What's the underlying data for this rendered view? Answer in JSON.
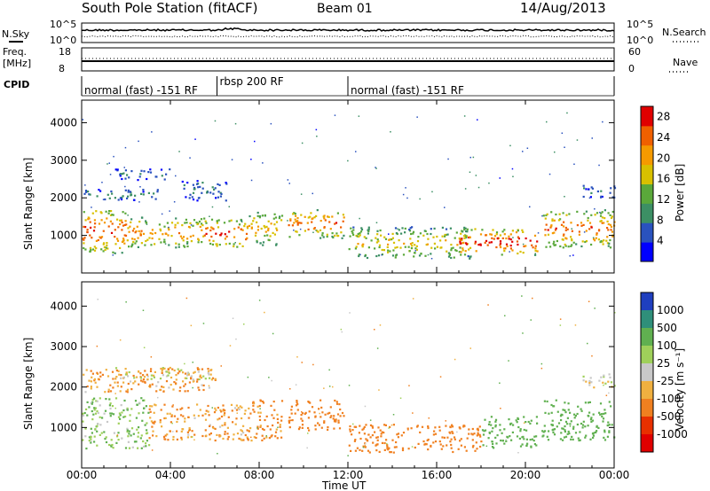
{
  "header": {
    "station": "South Pole Station (fitACF)",
    "beam": "Beam 01",
    "date": "14/Aug/2013"
  },
  "left_labels": {
    "nsky": "N.Sky",
    "freq_line1": "Freq.",
    "freq_line2": "[MHz]",
    "cpid": "CPID"
  },
  "right_labels": {
    "nsearch": "N.Search",
    "nave": "Nave"
  },
  "noise_axis": {
    "left_top": "10^5",
    "left_bottom": "10^0",
    "right_top": "10^5",
    "right_bottom": "10^0"
  },
  "freq_axis": {
    "left_top": "18",
    "left_bottom": "8",
    "right_top": "60",
    "right_bottom": "0"
  },
  "cpid_segments": [
    {
      "label": "normal (fast) -151 RF",
      "start_hour": 0,
      "end_hour": 6.1
    },
    {
      "label": "rbsp 200 RF",
      "start_hour": 6.1,
      "end_hour": 12.0
    },
    {
      "label": "normal (fast) -151 RF",
      "start_hour": 12.0,
      "end_hour": 24
    }
  ],
  "chart_data": [
    {
      "type": "heatmap",
      "name": "power",
      "ylabel": "Slant Range [km]",
      "xlabel": "",
      "ylim": [
        0,
        4600
      ],
      "yticks": [
        1000,
        2000,
        3000,
        4000
      ],
      "colorbar": {
        "label": "Power [dB]",
        "range": [
          0,
          30
        ],
        "ticks": [
          "4",
          "8",
          "12",
          "16",
          "20",
          "24",
          "28"
        ],
        "tick_values": [
          4,
          8,
          12,
          16,
          20,
          24,
          28
        ],
        "colors": [
          "#0000ff",
          "#2a52be",
          "#3c8f64",
          "#5aa83a",
          "#d8c000",
          "#f59a00",
          "#f06000",
          "#e00000"
        ]
      },
      "bands": [
        {
          "t0": 0.0,
          "t1": 2.0,
          "r0": 550,
          "r1": 1750,
          "peak": 26
        },
        {
          "t0": 0.0,
          "t1": 3.5,
          "r0": 1950,
          "r1": 2250,
          "peak": 9
        },
        {
          "t0": 1.5,
          "t1": 4.0,
          "r0": 2500,
          "r1": 2800,
          "peak": 7
        },
        {
          "t0": 2.0,
          "t1": 5.5,
          "r0": 700,
          "r1": 1500,
          "peak": 22
        },
        {
          "t0": 4.5,
          "t1": 6.5,
          "r0": 1950,
          "r1": 2500,
          "peak": 8
        },
        {
          "t0": 5.5,
          "t1": 7.5,
          "r0": 700,
          "r1": 1450,
          "peak": 26
        },
        {
          "t0": 7.5,
          "t1": 9.0,
          "r0": 750,
          "r1": 1650,
          "peak": 20
        },
        {
          "t0": 9.3,
          "t1": 11.8,
          "r0": 950,
          "r1": 1700,
          "peak": 24
        },
        {
          "t0": 12.0,
          "t1": 17.5,
          "r0": 400,
          "r1": 1250,
          "peak": 18
        },
        {
          "t0": 17.0,
          "t1": 20.5,
          "r0": 500,
          "r1": 1200,
          "peak": 28
        },
        {
          "t0": 20.7,
          "t1": 24.0,
          "r0": 700,
          "r1": 1700,
          "peak": 24
        },
        {
          "t0": 22.5,
          "t1": 24.0,
          "r0": 2000,
          "r1": 2350,
          "peak": 8
        }
      ]
    },
    {
      "type": "heatmap",
      "name": "velocity",
      "ylabel": "Slant Range [km]",
      "xlabel": "Time UT",
      "ylim": [
        0,
        4600
      ],
      "yticks": [
        1000,
        2000,
        3000,
        4000
      ],
      "xticks": [
        "00:00",
        "04:00",
        "08:00",
        "12:00",
        "16:00",
        "20:00",
        "00:00"
      ],
      "colorbar": {
        "label": "Velocity [m s⁻¹]",
        "ticks": [
          "1000",
          "500",
          "100",
          "25",
          "-25",
          "-100",
          "-500",
          "-1000"
        ],
        "colors": [
          "#1f3fbf",
          "#2f8f7a",
          "#60b050",
          "#9fd05a",
          "#c8c8c8",
          "#f0b040",
          "#f08020",
          "#e83000",
          "#e00000"
        ]
      },
      "bands": [
        {
          "t0": 0.0,
          "t1": 3.0,
          "r0": 500,
          "r1": 1750,
          "v": 100
        },
        {
          "t0": 0.0,
          "t1": 6.0,
          "r0": 1900,
          "r1": 2500,
          "v": -100
        },
        {
          "t0": 1.5,
          "t1": 6.0,
          "r0": 2200,
          "r1": 2500,
          "v": 0
        },
        {
          "t0": 3.0,
          "t1": 7.5,
          "r0": 700,
          "r1": 1600,
          "v": -100
        },
        {
          "t0": 7.5,
          "t1": 9.0,
          "r0": 700,
          "r1": 1700,
          "v": -150
        },
        {
          "t0": 9.3,
          "t1": 11.8,
          "r0": 950,
          "r1": 1700,
          "v": -200
        },
        {
          "t0": 12.0,
          "t1": 18.0,
          "r0": 400,
          "r1": 1100,
          "v": -400
        },
        {
          "t0": 18.0,
          "t1": 20.5,
          "r0": 500,
          "r1": 1300,
          "v": 300
        },
        {
          "t0": 20.7,
          "t1": 24.0,
          "r0": 700,
          "r1": 1700,
          "v": 200
        },
        {
          "t0": 22.5,
          "t1": 24.0,
          "r0": 2000,
          "r1": 2350,
          "v": 0
        }
      ]
    }
  ]
}
